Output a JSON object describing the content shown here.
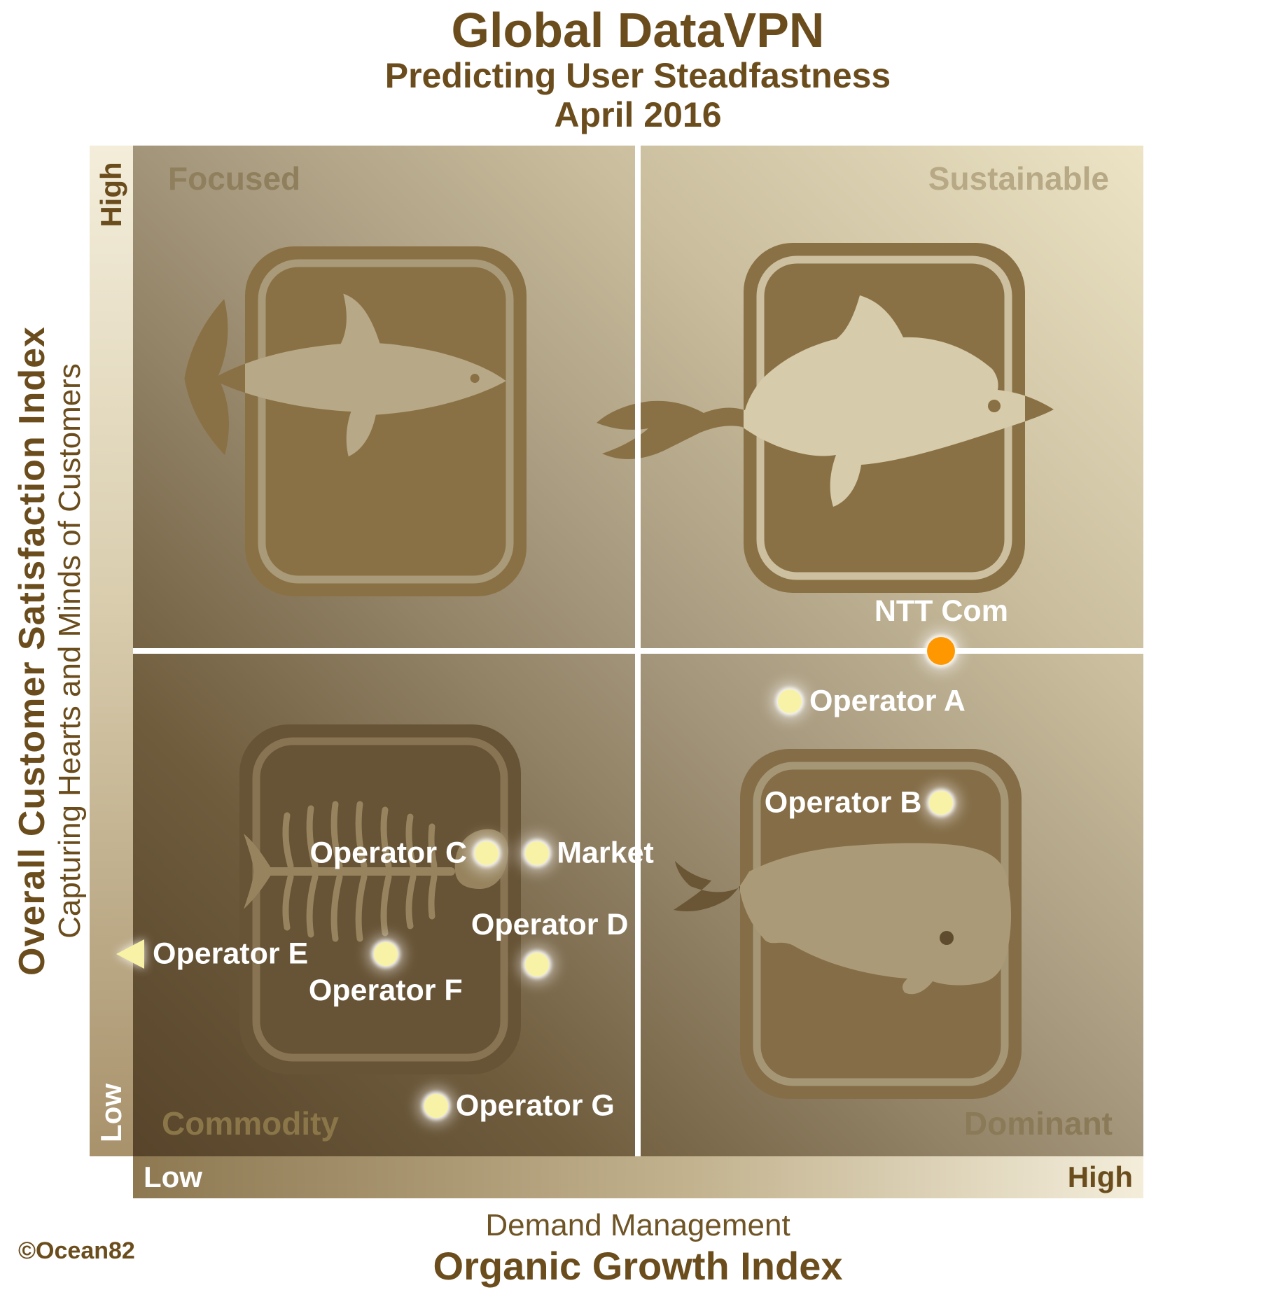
{
  "title": {
    "line1": "Global DataVPN",
    "line2": "Predicting User Steadfastness",
    "line3": "April 2016"
  },
  "credit": "©Ocean82",
  "y_axis": {
    "title": "Overall Customer Satisfaction Index",
    "subtitle": "Capturing Hearts and Minds of Customers",
    "high": "High",
    "low": "Low"
  },
  "x_axis": {
    "title_secondary": "Demand Management",
    "title_primary": "Organic Growth Index",
    "low": "Low",
    "high": "High"
  },
  "quadrants": {
    "top_left": "Focused",
    "top_right": "Sustainable",
    "bottom_left": "Commodity",
    "bottom_right": "Dominant"
  },
  "quadrant_icons": {
    "top_left": "shark",
    "top_right": "dolphin",
    "bottom_left": "fish-skeleton",
    "bottom_right": "sperm-whale"
  },
  "colors": {
    "accent_orange": "#ff9800",
    "dot_yellow": "#f8f2a6",
    "text_brown": "#6b4d1d",
    "label_white": "#ffffff"
  },
  "chart_data": {
    "type": "scatter",
    "title": "Global DataVPN — Predicting User Steadfastness (April 2016)",
    "xlabel": "Demand Management / Organic Growth Index (Low to High)",
    "ylabel": "Overall Customer Satisfaction Index (Low to High)",
    "xlim": [
      0,
      1
    ],
    "ylim": [
      0,
      1
    ],
    "grid": "quadrant midlines only",
    "legend_position": "none",
    "points": [
      {
        "label": "NTT Com",
        "x": 0.8,
        "y": 0.5,
        "marker": "circle",
        "color": "#ff9800",
        "label_side": "above",
        "emphasis": true
      },
      {
        "label": "Operator A",
        "x": 0.65,
        "y": 0.45,
        "marker": "circle",
        "color": "#f8f2a6",
        "label_side": "right"
      },
      {
        "label": "Operator B",
        "x": 0.8,
        "y": 0.35,
        "marker": "circle",
        "color": "#f8f2a6",
        "label_side": "left"
      },
      {
        "label": "Operator C",
        "x": 0.35,
        "y": 0.3,
        "marker": "circle",
        "color": "#f8f2a6",
        "label_side": "left"
      },
      {
        "label": "Market",
        "x": 0.4,
        "y": 0.3,
        "marker": "circle",
        "color": "#f8f2a6",
        "label_side": "right"
      },
      {
        "label": "Operator D",
        "x": 0.4,
        "y": 0.19,
        "marker": "circle",
        "color": "#f8f2a6",
        "label_side": "above",
        "label_dx": 18
      },
      {
        "label": "Operator E",
        "x": 0.0,
        "y": 0.2,
        "marker": "triangle-left",
        "color": "#f8f2a6",
        "label_side": "right"
      },
      {
        "label": "Operator F",
        "x": 0.25,
        "y": 0.2,
        "marker": "circle",
        "color": "#f8f2a6",
        "label_side": "below"
      },
      {
        "label": "Operator G",
        "x": 0.3,
        "y": 0.05,
        "marker": "circle",
        "color": "#f8f2a6",
        "label_side": "right"
      }
    ]
  }
}
